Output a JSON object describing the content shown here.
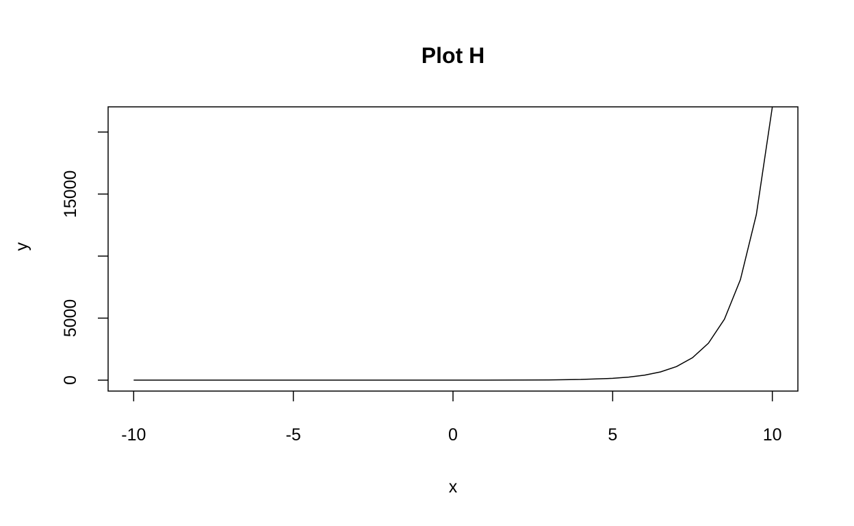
{
  "chart_data": {
    "type": "line",
    "title": "Plot H",
    "xlabel": "x",
    "ylabel": "y",
    "xlim": [
      -10.8,
      10.8
    ],
    "ylim": [
      -880,
      22030
    ],
    "x_ticks": [
      -10,
      -5,
      0,
      5,
      10
    ],
    "x_tick_labels": [
      "-10",
      "-5",
      "0",
      "5",
      "10"
    ],
    "y_ticks": [
      0,
      5000,
      10000,
      15000,
      20000
    ],
    "y_tick_labels": [
      "0",
      "5000",
      "",
      "15000",
      ""
    ],
    "grid": false,
    "legend": "none",
    "series": [
      {
        "x": [
          -10,
          -9,
          -8,
          -7,
          -6,
          -5,
          -4,
          -3,
          -2,
          -1,
          0,
          1,
          2,
          3,
          4,
          5,
          5.5,
          6,
          6.5,
          7,
          7.5,
          8,
          8.5,
          9,
          9.5,
          10
        ],
        "y": [
          0,
          0,
          0,
          0,
          0,
          0,
          0,
          0,
          0,
          0,
          1,
          3,
          7,
          20,
          55,
          148,
          245,
          403,
          665,
          1097,
          1808,
          2981,
          4915,
          8103,
          13360,
          22026
        ]
      }
    ]
  }
}
